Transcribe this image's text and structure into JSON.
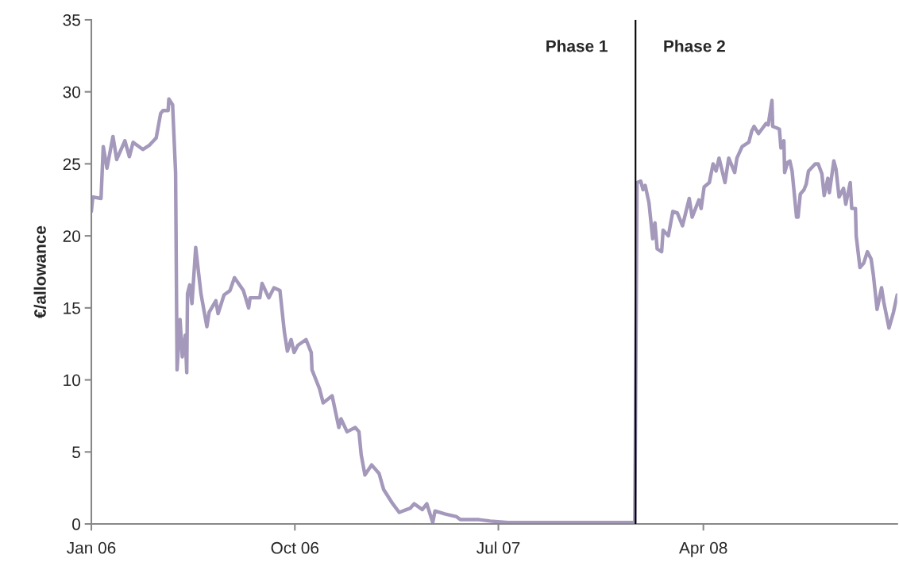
{
  "chart_data": {
    "type": "line",
    "ylabel": "€/allowance",
    "x": [
      "2006-01-01",
      "2006-01-03",
      "2006-01-14",
      "2006-01-17",
      "2006-01-22",
      "2006-01-30",
      "2006-02-04",
      "2006-02-15",
      "2006-02-21",
      "2006-02-26",
      "2006-03-11",
      "2006-03-20",
      "2006-03-29",
      "2006-04-04",
      "2006-04-07",
      "2006-04-14",
      "2006-04-15",
      "2006-04-20",
      "2006-04-24",
      "2006-04-26",
      "2006-04-30",
      "2006-05-03",
      "2006-05-07",
      "2006-05-09",
      "2006-05-10",
      "2006-05-13",
      "2006-05-16",
      "2006-05-21",
      "2006-05-28",
      "2006-06-05",
      "2006-06-08",
      "2006-06-17",
      "2006-06-20",
      "2006-06-28",
      "2006-07-06",
      "2006-07-12",
      "2006-07-24",
      "2006-07-31",
      "2006-08-02",
      "2006-08-15",
      "2006-08-18",
      "2006-08-27",
      "2006-09-03",
      "2006-09-11",
      "2006-09-17",
      "2006-09-21",
      "2006-09-26",
      "2006-09-30",
      "2006-10-05",
      "2006-10-16",
      "2006-10-23",
      "2006-10-24",
      "2006-11-03",
      "2006-11-08",
      "2006-11-20",
      "2006-11-29",
      "2006-12-02",
      "2006-12-10",
      "2006-12-21",
      "2006-12-26",
      "2006-12-29",
      "2007-01-03",
      "2007-01-12",
      "2007-01-22",
      "2007-01-28",
      "2007-02-08",
      "2007-02-18",
      "2007-03-05",
      "2007-03-10",
      "2007-03-21",
      "2007-03-27",
      "2007-04-04",
      "2007-04-07",
      "2007-04-20",
      "2007-05-06",
      "2007-05-11",
      "2007-06-05",
      "2007-06-20",
      "2007-07-14",
      "2007-09-16",
      "2007-12-31",
      "2008-01-03",
      "2008-01-08",
      "2008-01-11",
      "2008-01-14",
      "2008-01-19",
      "2008-01-24",
      "2008-01-27",
      "2008-01-30",
      "2008-02-05",
      "2008-02-07",
      "2008-02-14",
      "2008-02-20",
      "2008-02-26",
      "2008-03-04",
      "2008-03-13",
      "2008-03-17",
      "2008-03-26",
      "2008-03-29",
      "2008-04-02",
      "2008-04-09",
      "2008-04-14",
      "2008-04-18",
      "2008-04-22",
      "2008-04-30",
      "2008-05-05",
      "2008-05-13",
      "2008-05-16",
      "2008-05-23",
      "2008-06-01",
      "2008-06-05",
      "2008-06-08",
      "2008-06-14",
      "2008-06-24",
      "2008-06-27",
      "2008-07-02",
      "2008-07-03",
      "2008-07-08",
      "2008-07-12",
      "2008-07-14",
      "2008-07-18",
      "2008-07-19",
      "2008-07-23",
      "2008-07-26",
      "2008-07-29",
      "2008-08-04",
      "2008-08-06",
      "2008-08-09",
      "2008-08-14",
      "2008-08-17",
      "2008-08-20",
      "2008-08-29",
      "2008-09-02",
      "2008-09-07",
      "2008-09-10",
      "2008-09-15",
      "2008-09-17",
      "2008-09-23",
      "2008-09-26",
      "2008-09-30",
      "2008-10-06",
      "2008-10-09",
      "2008-10-15",
      "2008-10-17",
      "2008-10-22",
      "2008-10-23",
      "2008-10-28",
      "2008-11-02",
      "2008-11-07",
      "2008-11-12",
      "2008-11-15",
      "2008-11-20",
      "2008-11-26",
      "2008-11-29",
      "2008-12-06",
      "2008-12-12",
      "2008-12-17"
    ],
    "series": [
      {
        "color": "#a498bb",
        "values": [
          21.7,
          22.7,
          22.6,
          26.2,
          24.7,
          26.9,
          25.3,
          26.6,
          25.5,
          26.5,
          26.0,
          26.3,
          26.8,
          28.5,
          28.7,
          28.7,
          29.5,
          29.1,
          24.4,
          10.7,
          14.2,
          11.6,
          13.1,
          10.5,
          16.0,
          16.6,
          15.3,
          19.2,
          16.0,
          13.7,
          14.7,
          15.5,
          14.6,
          15.9,
          16.2,
          17.1,
          16.2,
          15.0,
          15.7,
          15.7,
          16.7,
          15.7,
          16.4,
          16.2,
          13.3,
          12.0,
          12.8,
          11.9,
          12.4,
          12.8,
          11.9,
          10.7,
          9.4,
          8.4,
          8.9,
          6.7,
          7.3,
          6.4,
          6.7,
          6.4,
          4.8,
          3.4,
          4.1,
          3.5,
          2.4,
          1.5,
          0.8,
          1.1,
          1.4,
          1.0,
          1.4,
          0.1,
          0.9,
          0.7,
          0.5,
          0.3,
          0.3,
          0.2,
          0.1,
          0.1,
          0.1,
          23.7,
          23.8,
          23.2,
          23.5,
          22.3,
          19.8,
          20.9,
          19.1,
          18.9,
          20.4,
          20.0,
          21.7,
          21.6,
          20.7,
          22.6,
          21.3,
          22.5,
          21.9,
          23.4,
          23.7,
          25.0,
          24.5,
          25.4,
          23.7,
          25.4,
          24.4,
          25.4,
          26.2,
          26.5,
          27.3,
          27.6,
          27.1,
          27.8,
          27.7,
          29.4,
          27.6,
          27.5,
          27.4,
          26.1,
          26.6,
          24.4,
          25.1,
          25.2,
          24.5,
          21.3,
          21.3,
          22.9,
          23.2,
          23.6,
          24.5,
          25.0,
          25.0,
          24.3,
          22.8,
          24.0,
          23.0,
          25.2,
          24.6,
          22.7,
          23.3,
          22.2,
          23.7,
          21.9,
          21.9,
          20.0,
          17.8,
          18.1,
          18.9,
          18.4,
          17.3,
          14.9,
          16.4,
          15.4,
          13.6,
          14.7,
          15.9
        ]
      }
    ],
    "xlim": [
      "2006-01-01",
      "2008-12-17"
    ],
    "xticks": [
      {
        "value": "2006-01-01",
        "label": "Jan 06"
      },
      {
        "value": "2006-10-01",
        "label": "Oct 06"
      },
      {
        "value": "2007-07-01",
        "label": "Jul 07"
      },
      {
        "value": "2008-04-01",
        "label": "Apr 08"
      }
    ],
    "ylim": [
      0,
      35
    ],
    "yticks": [
      0,
      5,
      10,
      15,
      20,
      25,
      30,
      35
    ],
    "ref_lines": [
      {
        "axis": "x",
        "value": "2008-01-01",
        "color": "#000000"
      }
    ],
    "annotations": [
      "Phase 1",
      "Phase 2"
    ],
    "grid": false,
    "marker": "none",
    "line_style": "solid"
  }
}
